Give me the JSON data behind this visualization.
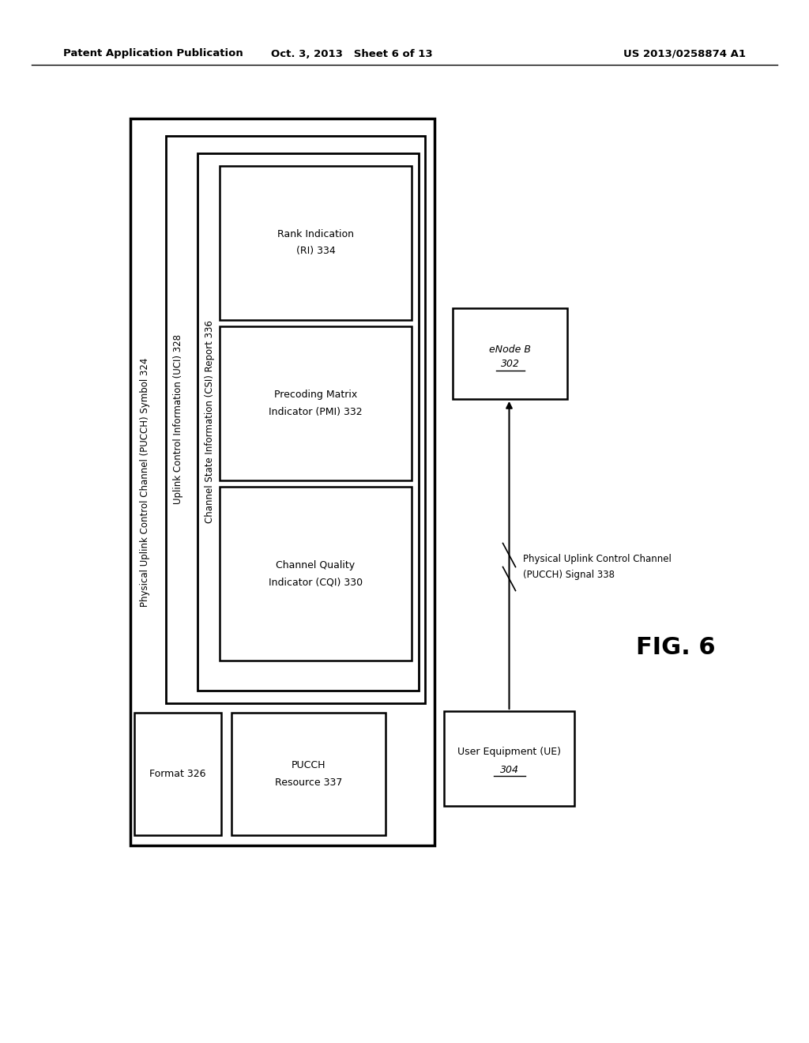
{
  "header_left": "Patent Application Publication",
  "header_center": "Oct. 3, 2013   Sheet 6 of 13",
  "header_right": "US 2013/0258874 A1",
  "fig_label": "FIG. 6",
  "outer_box_label": "Physical Uplink Control Channel (PUCCH) Symbol 324",
  "uci_box_label": "Uplink Control Information (UCI) 328",
  "csi_box_label": "Channel State Information (CSI) Report 336",
  "cqi_line1": "Channel Quality",
  "cqi_line2": "Indicator (CQI) 330",
  "pmi_line1": "Precoding Matrix",
  "pmi_line2": "Indicator (PMI) 332",
  "ri_line1": "Rank Indication",
  "ri_line2": "(RI) 334",
  "format_label": "Format 326",
  "pucch_res_line1": "PUCCH",
  "pucch_res_line2": "Resource 337",
  "ue_line1": "User Equipment (UE)",
  "ue_line2": "304",
  "enb_line1": "eNode B 302",
  "signal_line1": "Physical Uplink Control Channel",
  "signal_line2": "(PUCCH) Signal 338",
  "bg_color": "#ffffff"
}
